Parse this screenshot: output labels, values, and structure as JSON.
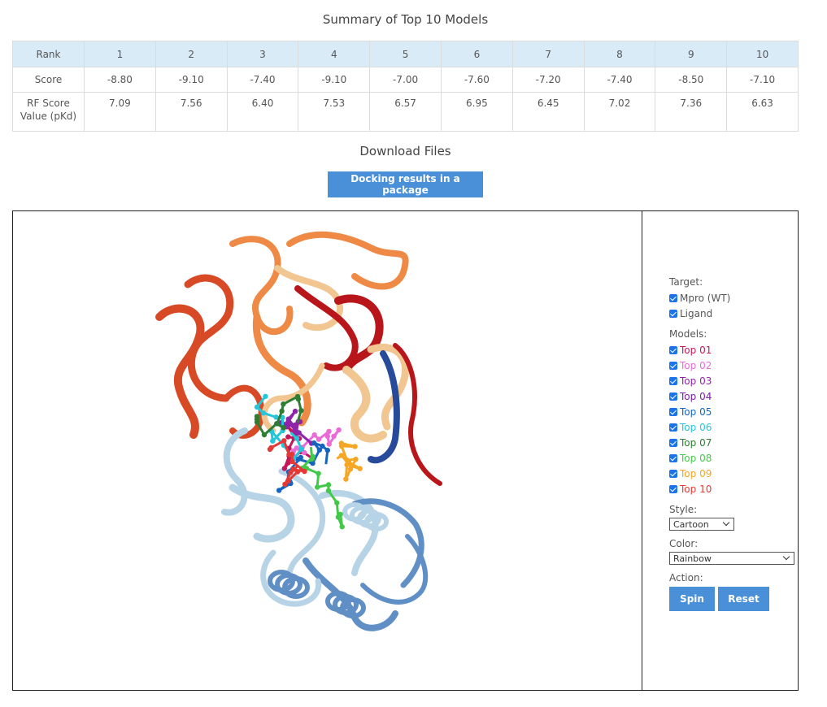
{
  "summary": {
    "title": "Summary of Top 10 Models",
    "rank_label": "Rank",
    "score_label": "Score",
    "rf_label": "RF Score Value (pKd)",
    "ranks": [
      "1",
      "2",
      "3",
      "4",
      "5",
      "6",
      "7",
      "8",
      "9",
      "10"
    ],
    "scores": [
      "-8.80",
      "-9.10",
      "-7.40",
      "-9.10",
      "-7.00",
      "-7.60",
      "-7.20",
      "-7.40",
      "-8.50",
      "-7.10"
    ],
    "rf_values": [
      "7.09",
      "7.56",
      "6.40",
      "7.53",
      "6.57",
      "6.95",
      "6.45",
      "7.02",
      "7.36",
      "6.63"
    ]
  },
  "download": {
    "title": "Download Files",
    "button_label": "Docking results in a package"
  },
  "controls": {
    "target_label": "Target:",
    "targets": [
      {
        "label": "Mpro (WT)",
        "checked": true
      },
      {
        "label": "Ligand",
        "checked": true
      }
    ],
    "models_label": "Models:",
    "models": [
      {
        "label": "Top 01",
        "color": "#c2185b",
        "checked": true
      },
      {
        "label": "Top 02",
        "color": "#e86bd6",
        "checked": true
      },
      {
        "label": "Top 03",
        "color": "#8e24aa",
        "checked": true
      },
      {
        "label": "Top 04",
        "color": "#7b1fa2",
        "checked": true
      },
      {
        "label": "Top 05",
        "color": "#1565c0",
        "checked": true
      },
      {
        "label": "Top 06",
        "color": "#26c6da",
        "checked": true
      },
      {
        "label": "Top 07",
        "color": "#2e7d32",
        "checked": true
      },
      {
        "label": "Top 08",
        "color": "#43c94a",
        "checked": true
      },
      {
        "label": "Top 09",
        "color": "#f5a623",
        "checked": true
      },
      {
        "label": "Top 10",
        "color": "#e53935",
        "checked": true
      }
    ],
    "style_label": "Style:",
    "style_value": "Cartoon",
    "color_label": "Color:",
    "color_value": "Rainbow",
    "action_label": "Action:",
    "spin_label": "Spin",
    "reset_label": "Reset"
  },
  "viewer": {
    "protein_colors": [
      "#d84a25",
      "#ee8a45",
      "#f2c690",
      "#b8161b",
      "#274a9a",
      "#b7d3e6",
      "#5f8fc4"
    ],
    "ligand_colors": [
      "#c2185b",
      "#e86bd6",
      "#8e24aa",
      "#1565c0",
      "#26c6da",
      "#2e7d32",
      "#43c94a",
      "#f5a623",
      "#e53935"
    ]
  }
}
